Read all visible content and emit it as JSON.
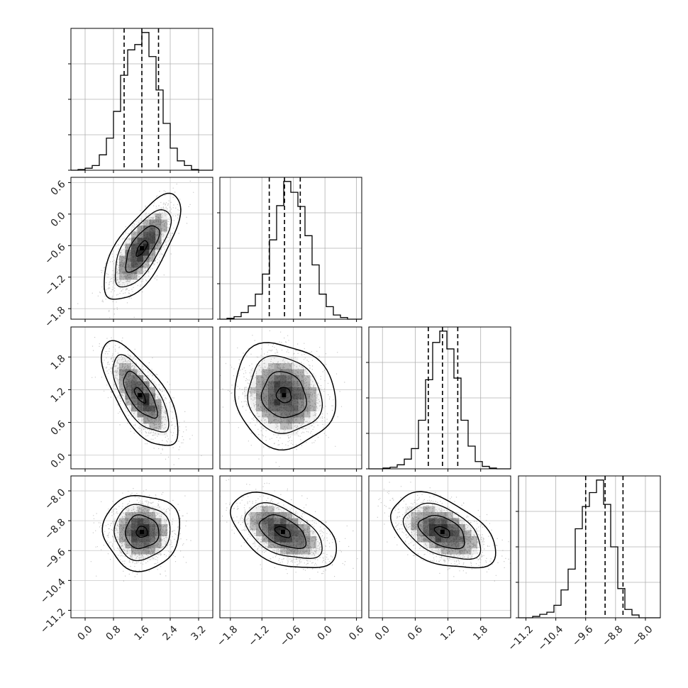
{
  "chart_data": {
    "type": "corner",
    "grid": true,
    "parameters": [
      {
        "index": 0,
        "range": [
          -0.4,
          3.6
        ],
        "ticks": [
          0.0,
          0.8,
          1.6,
          2.4,
          3.2
        ],
        "tick_labels": [
          "0.0",
          "0.8",
          "1.6",
          "2.4",
          "3.2"
        ],
        "quantiles": [
          1.1,
          1.6,
          2.07
        ],
        "histogram": {
          "bin_edges": [
            -0.4,
            -0.2,
            0.0,
            0.2,
            0.4,
            0.6,
            0.8,
            1.0,
            1.2,
            1.4,
            1.6,
            1.8,
            2.0,
            2.2,
            2.4,
            2.6,
            2.8,
            3.0,
            3.2,
            3.4,
            3.6
          ],
          "counts": [
            0,
            1,
            3,
            7,
            23,
            48,
            88,
            142,
            180,
            188,
            206,
            170,
            120,
            70,
            33,
            14,
            7,
            1,
            0,
            0
          ]
        }
      },
      {
        "index": 1,
        "range": [
          -2.0,
          0.7
        ],
        "ticks": [
          -1.8,
          -1.2,
          -0.6,
          0.0,
          0.6
        ],
        "tick_labels": [
          "−1.8",
          "−1.2",
          "−0.6",
          "0.0",
          "0.6"
        ],
        "quantiles": [
          -1.06,
          -0.77,
          -0.47
        ],
        "histogram": {
          "bin_edges": [
            -2.0,
            -1.865,
            -1.73,
            -1.595,
            -1.46,
            -1.325,
            -1.19,
            -1.055,
            -0.92,
            -0.785,
            -0.65,
            -0.515,
            -0.38,
            -0.245,
            -0.11,
            0.025,
            0.16,
            0.295,
            0.43,
            0.565,
            0.7
          ],
          "counts": [
            0,
            1,
            3,
            8,
            16,
            30,
            54,
            95,
            136,
            165,
            152,
            135,
            100,
            65,
            30,
            15,
            5,
            2,
            0,
            0
          ]
        }
      },
      {
        "index": 2,
        "range": [
          -0.25,
          2.35
        ],
        "ticks": [
          0.0,
          0.6,
          1.2,
          1.8
        ],
        "tick_labels": [
          "0.0",
          "0.6",
          "1.2",
          "1.8"
        ],
        "quantiles": [
          0.84,
          1.1,
          1.38
        ],
        "histogram": {
          "bin_edges": [
            -0.25,
            -0.12,
            0.01,
            0.14,
            0.27,
            0.4,
            0.53,
            0.66,
            0.79,
            0.92,
            1.05,
            1.18,
            1.31,
            1.44,
            1.57,
            1.7,
            1.83,
            1.96,
            2.09,
            2.22,
            2.35
          ],
          "counts": [
            0,
            0,
            1,
            2,
            5,
            12,
            25,
            60,
            110,
            156,
            170,
            148,
            112,
            60,
            28,
            9,
            3,
            1,
            0,
            0
          ]
        }
      },
      {
        "index": 3,
        "range": [
          -11.4,
          -7.6
        ],
        "ticks": [
          -11.2,
          -10.4,
          -9.6,
          -8.8,
          -8.0
        ],
        "tick_labels": [
          "−11.2",
          "−10.4",
          "−9.6",
          "−8.8",
          "−8.0"
        ],
        "quantiles": [
          -9.6,
          -9.08,
          -8.6
        ],
        "histogram": {
          "bin_edges": [
            -11.4,
            -11.21,
            -11.02,
            -10.83,
            -10.64,
            -10.45,
            -10.26,
            -10.07,
            -9.88,
            -9.69,
            -9.5,
            -9.31,
            -9.12,
            -8.93,
            -8.74,
            -8.55,
            -8.36,
            -8.17,
            -7.98,
            -7.79,
            -7.6
          ],
          "counts": [
            0,
            0,
            2,
            5,
            8,
            18,
            40,
            70,
            128,
            160,
            180,
            198,
            163,
            102,
            42,
            12,
            4,
            0,
            0,
            0
          ]
        }
      }
    ],
    "pairs": [
      {
        "x": 0,
        "y": 1,
        "mean": [
          1.6,
          -0.65
        ],
        "std": [
          0.45,
          0.42
        ],
        "corr": 0.7
      },
      {
        "x": 0,
        "y": 2,
        "mean": [
          1.55,
          1.1
        ],
        "std": [
          0.45,
          0.4
        ],
        "corr": -0.7
      },
      {
        "x": 1,
        "y": 2,
        "mean": [
          -0.78,
          1.1
        ],
        "std": [
          0.4,
          0.4
        ],
        "corr": -0.1
      },
      {
        "x": 0,
        "y": 3,
        "mean": [
          1.6,
          -9.1
        ],
        "std": [
          0.45,
          0.42
        ],
        "corr": 0.0
      },
      {
        "x": 1,
        "y": 3,
        "mean": [
          -0.8,
          -9.1
        ],
        "std": [
          0.42,
          0.42
        ],
        "corr": -0.5
      },
      {
        "x": 2,
        "y": 3,
        "mean": [
          1.1,
          -9.1
        ],
        "std": [
          0.4,
          0.42
        ],
        "corr": -0.45
      }
    ]
  }
}
